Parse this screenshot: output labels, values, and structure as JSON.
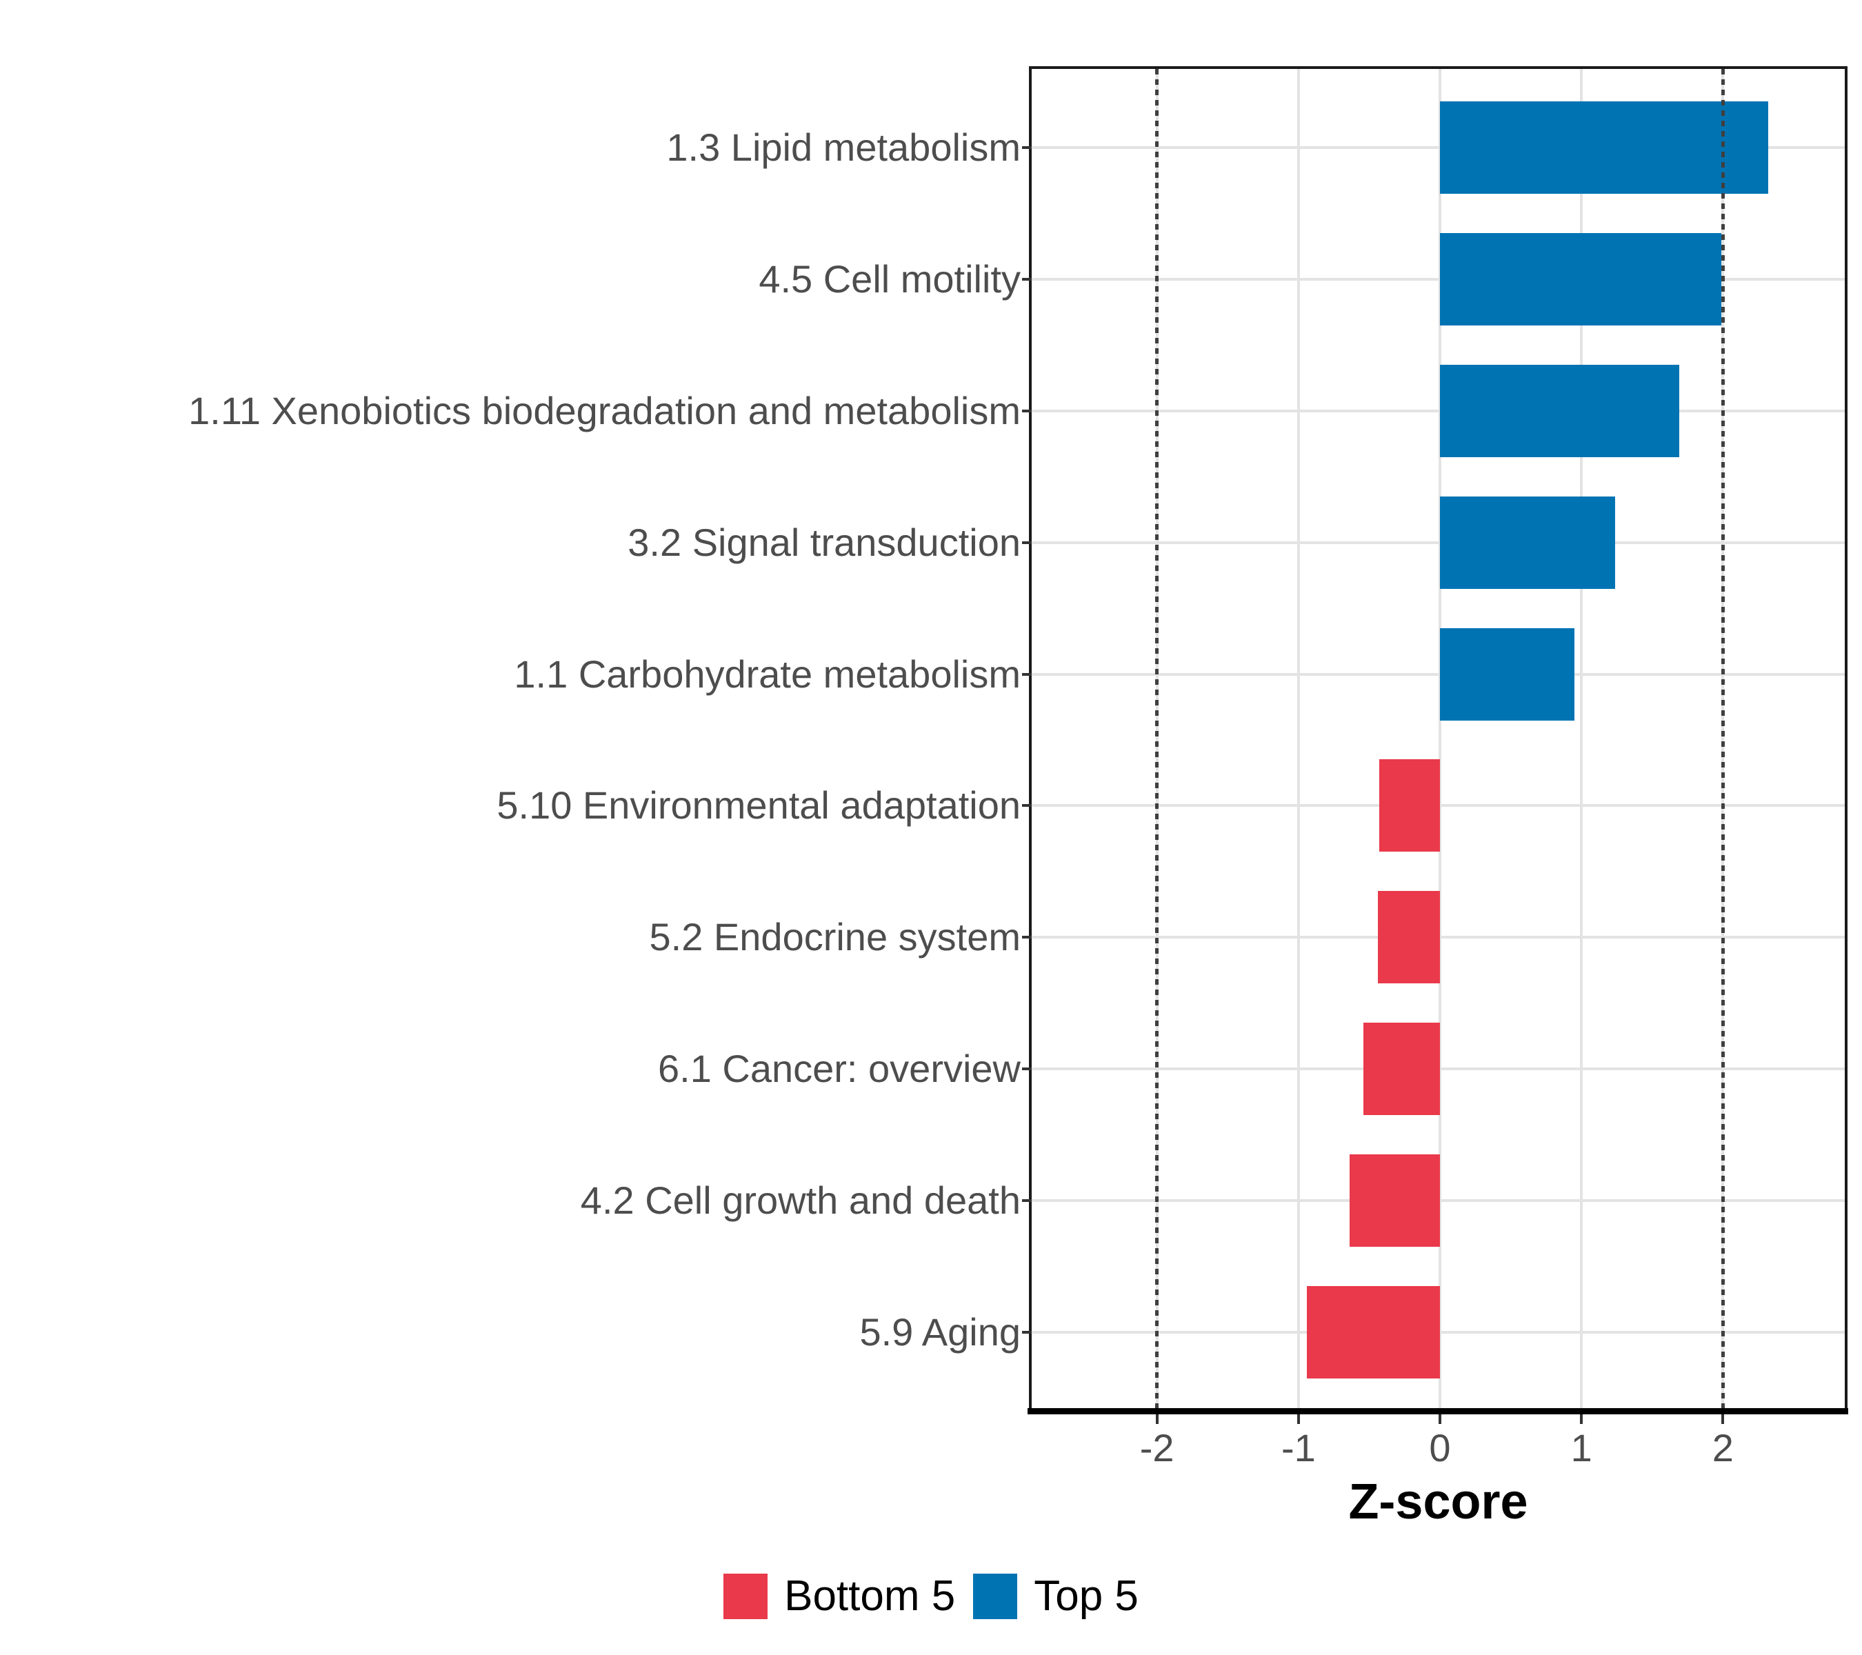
{
  "figure": {
    "background": "#FFFFFF"
  },
  "chart_data": {
    "type": "bar",
    "orientation": "horizontal",
    "title": "",
    "xlabel": "Z-score",
    "ylabel": "",
    "categories": [
      "1.3 Lipid metabolism",
      "4.5 Cell motility",
      "1.11 Xenobiotics biodegradation and metabolism",
      "3.2 Signal transduction",
      "1.1 Carbohydrate metabolism",
      "5.10 Environmental adaptation",
      "5.2 Endocrine system",
      "6.1 Cancer: overview",
      "4.2 Cell growth and death",
      "5.9 Aging"
    ],
    "values": [
      2.32,
      1.99,
      1.69,
      1.24,
      0.95,
      -0.43,
      -0.44,
      -0.54,
      -0.64,
      -0.94
    ],
    "groups": [
      "Top 5",
      "Top 5",
      "Top 5",
      "Top 5",
      "Top 5",
      "Bottom 5",
      "Bottom 5",
      "Bottom 5",
      "Bottom 5",
      "Bottom 5"
    ],
    "x_ticks": [
      -2,
      -1,
      0,
      1,
      2
    ],
    "x_tick_labels": [
      "-2",
      "-1",
      "0",
      "1",
      "2"
    ],
    "xlim": [
      -2.89,
      2.86
    ],
    "bar_width_fraction": 0.7,
    "grid": true,
    "reference_lines": {
      "values": [
        -2,
        2
      ],
      "style": "dotted",
      "color": "#3F3F3F"
    },
    "legend": {
      "position": "bottom",
      "entries": [
        {
          "label": "Bottom 5",
          "color": "#E9394A"
        },
        {
          "label": "Top 5",
          "color": "#0073B3"
        }
      ]
    },
    "colors": {
      "top5_bar": "#0073B3",
      "bottom5_bar": "#E9394A",
      "gridline": "#E3E3E3",
      "axis_text": "#4D4D4D",
      "panel_border": "#1A1A1A"
    }
  }
}
